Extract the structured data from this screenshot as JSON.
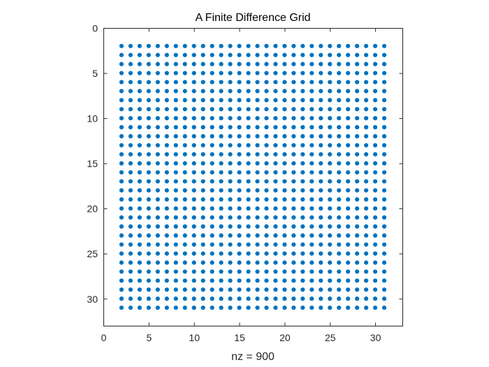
{
  "chart_data": {
    "type": "scatter",
    "title": "A Finite Difference Grid",
    "xlabel": "nz = 900",
    "ylabel": "",
    "xlim": [
      0,
      33
    ],
    "ylim": [
      0,
      33
    ],
    "y_direction": "reversed",
    "xticks": [
      0,
      5,
      10,
      15,
      20,
      25,
      30
    ],
    "yticks": [
      0,
      5,
      10,
      15,
      20,
      25,
      30
    ],
    "xtick_labels": [
      "0",
      "5",
      "10",
      "15",
      "20",
      "25",
      "30"
    ],
    "ytick_labels": [
      "0",
      "5",
      "10",
      "15",
      "20",
      "25",
      "30"
    ],
    "grid": false,
    "marker": "filled-dot",
    "marker_color": "#0072BD",
    "axis_color": "#262626",
    "series": [
      {
        "points_description": "all integer (x, y) pairs",
        "x_range": [
          2,
          31
        ],
        "y_range": [
          2,
          31
        ],
        "step": 1,
        "count": 900
      }
    ]
  }
}
